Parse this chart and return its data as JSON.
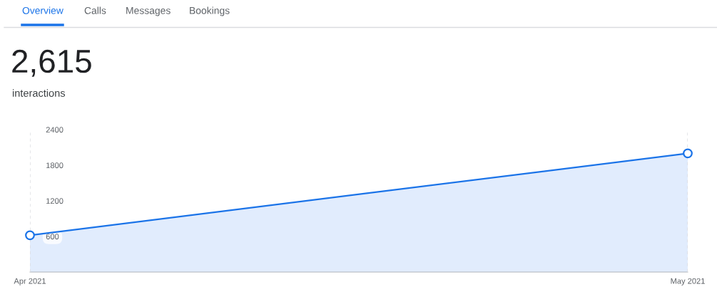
{
  "chart_data": {
    "type": "area",
    "title": "2,615",
    "subtitle": "interactions",
    "annotations": [
      "Overview",
      "Calls",
      "Messages",
      "Bookings"
    ],
    "categories": [
      "Apr 2021",
      "May 2021"
    ],
    "series": [
      {
        "color": "#1a73e8",
        "values": [
          620,
          2000
        ]
      }
    ],
    "grid": "x",
    "ylim": [
      0,
      2400
    ],
    "yticks": [
      600,
      1200,
      1800,
      2400
    ],
    "marker": "circle",
    "line_style": "solid",
    "legend": false
  }
}
